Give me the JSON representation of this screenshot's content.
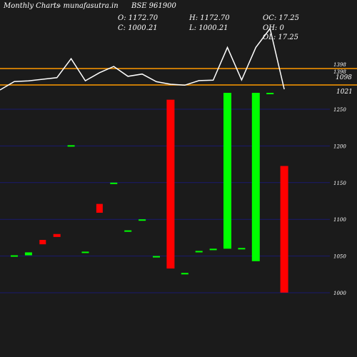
{
  "header": {
    "brand": "Monthly Charts",
    "site": "- munafasutra.in",
    "symbol": "BSE 961900"
  },
  "ohlc": {
    "open": "O: 1172.70",
    "high": "H: 1172.70",
    "oc": "OC: 17.25",
    "close": "C: 1000.21",
    "low": "L: 1000.21",
    "oh": "OH: 0",
    "ol": "OL: 17.25"
  },
  "chart_data": {
    "type": "candlestick",
    "y_ticks": [
      1250,
      1200,
      1150,
      1100,
      1050,
      1000
    ],
    "ylim": [
      985,
      1262
    ],
    "reference_levels": [
      {
        "label": "1398",
        "color": "#ff9900"
      },
      {
        "label": "1098",
        "color": "#ff9900"
      }
    ],
    "line_top_label": "1021",
    "line_labels": [
      "1398",
      "1098",
      "1021"
    ],
    "colors": {
      "up": "#00ff00",
      "down": "#ff0000",
      "line": "#ffffff",
      "grid": "#1a1a6e",
      "reference": "#ff9900"
    },
    "candles": [
      {
        "open": 1051,
        "close": 1051,
        "dir": "up"
      },
      {
        "open": 1051,
        "close": 1055,
        "dir": "up"
      },
      {
        "open": 1072,
        "close": 1066,
        "dir": "down"
      },
      {
        "open": 1080,
        "close": 1076,
        "dir": "down"
      },
      {
        "open": 1200,
        "close": 1201,
        "dir": "up"
      },
      {
        "open": 1055,
        "close": 1056,
        "dir": "up"
      },
      {
        "open": 1121,
        "close": 1109,
        "dir": "down"
      },
      {
        "open": 1149,
        "close": 1150,
        "dir": "up"
      },
      {
        "open": 1084,
        "close": 1085,
        "dir": "up"
      },
      {
        "open": 1099,
        "close": 1100,
        "dir": "up"
      },
      {
        "open": 1050,
        "close": 1050,
        "dir": "up"
      },
      {
        "open": 1263,
        "close": 1033,
        "dir": "down"
      },
      {
        "open": 1025,
        "close": 1027,
        "dir": "up"
      },
      {
        "open": 1055,
        "close": 1057,
        "dir": "up"
      },
      {
        "open": 1058,
        "close": 1060,
        "dir": "up"
      },
      {
        "open": 1060,
        "close": 1275,
        "dir": "up"
      },
      {
        "open": 1060,
        "close": 1061,
        "dir": "up"
      },
      {
        "open": 1043,
        "close": 1275,
        "dir": "up"
      },
      {
        "open": 1398,
        "close": 1399,
        "dir": "up"
      },
      {
        "open": 1172.7,
        "close": 1000.21,
        "dir": "down"
      }
    ]
  }
}
